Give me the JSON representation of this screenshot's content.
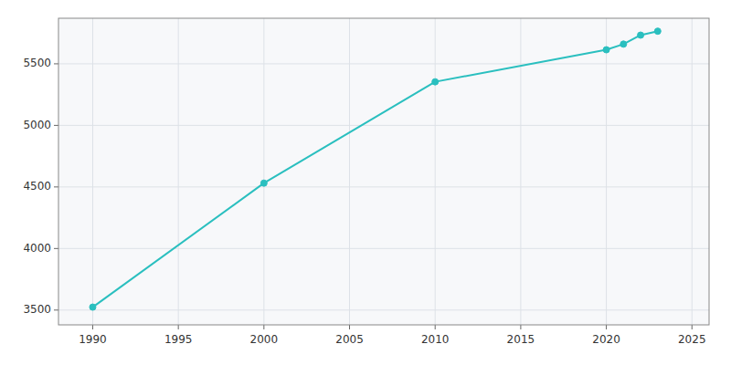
{
  "chart_data": {
    "type": "line",
    "x": [
      1990,
      2000,
      2010,
      2020,
      2021,
      2022,
      2023
    ],
    "values": [
      3524,
      4531,
      5354,
      5614,
      5660,
      5733,
      5765
    ],
    "color": "#2abfbf",
    "marker": "circle",
    "xlim": [
      1988,
      2026
    ],
    "ylim": [
      3380,
      5870
    ],
    "xticks": [
      1990,
      1995,
      2000,
      2005,
      2010,
      2015,
      2020,
      2025
    ],
    "yticks": [
      3500,
      4000,
      4500,
      5000,
      5500
    ],
    "grid": true
  }
}
